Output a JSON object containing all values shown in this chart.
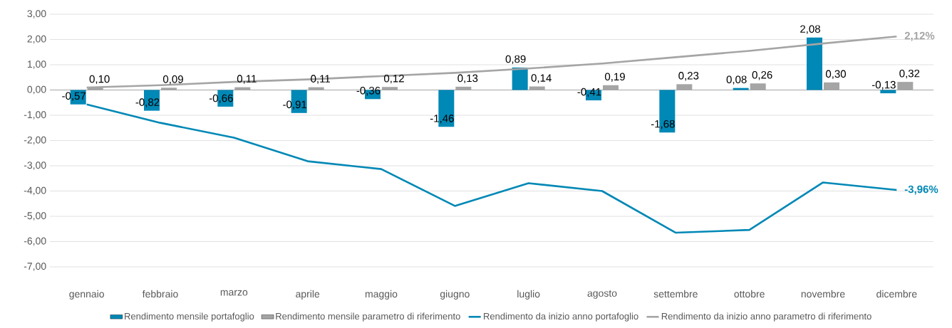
{
  "chart_data": {
    "type": "bar",
    "categories": [
      "gennaio",
      "febbraio",
      "marzo",
      "aprile",
      "maggio",
      "giugno",
      "luglio",
      "agosto",
      "settembre",
      "ottobre",
      "novembre",
      "dicembre"
    ],
    "series": [
      {
        "name": "Rendimento mensile portafoglio",
        "color": "#0088b6",
        "values": [
          -0.57,
          -0.82,
          -0.66,
          -0.91,
          -0.36,
          -1.46,
          0.89,
          -0.41,
          -1.68,
          0.08,
          2.08,
          -0.13
        ],
        "value_labels": [
          "-0,57",
          "-0,82",
          "-0,66",
          "-0,91",
          "-0,36",
          "-1,46",
          "0,89",
          "-0,41",
          "-1,68",
          "0,08",
          "2,08",
          "-0,13"
        ]
      },
      {
        "name": "Rendimento mensile parametro di riferimento",
        "color": "#a5a5a5",
        "values": [
          0.1,
          0.09,
          0.11,
          0.11,
          0.12,
          0.13,
          0.14,
          0.19,
          0.23,
          0.26,
          0.3,
          0.32
        ],
        "value_labels": [
          "0,10",
          "0,09",
          "0,11",
          "0,11",
          "0,12",
          "0,13",
          "0,14",
          "0,19",
          "0,23",
          "0,26",
          "0,30",
          "0,32"
        ]
      },
      {
        "name": "Rendimento da inizio anno portafoglio",
        "type": "line",
        "color": "#0088b6",
        "values": [
          -0.57,
          -1.3,
          -1.89,
          -2.82,
          -3.13,
          -4.59,
          -3.69,
          -4.0,
          -5.65,
          -5.54,
          -3.66,
          -3.96
        ]
      },
      {
        "name": "Rendimento da inizio anno parametro di riferimento",
        "type": "line",
        "color": "#a5a5a5",
        "values": [
          0.1,
          0.19,
          0.32,
          0.42,
          0.55,
          0.68,
          0.85,
          1.05,
          1.3,
          1.55,
          1.84,
          2.12
        ]
      }
    ],
    "ylim": [
      -7,
      3
    ],
    "yticks": [
      {
        "value": -7,
        "label": "-7,00"
      },
      {
        "value": -6,
        "label": "-6,00"
      },
      {
        "value": -5,
        "label": "-5,00"
      },
      {
        "value": -4,
        "label": "-4,00"
      },
      {
        "value": -3,
        "label": "-3,00"
      },
      {
        "value": -2,
        "label": "-2,00"
      },
      {
        "value": -1,
        "label": "-1,00"
      },
      {
        "value": 0,
        "label": "0,00"
      },
      {
        "value": 1,
        "label": "1,00"
      },
      {
        "value": 2,
        "label": "2,00"
      },
      {
        "value": 3,
        "label": "3,00"
      }
    ],
    "annotations": [
      {
        "text": "2,12%",
        "x": "dicembre",
        "y": 2.12
      },
      {
        "text": "-3,96%",
        "x": "dicembre",
        "y": -3.96
      }
    ],
    "grid": "y",
    "legend": "bottom",
    "marker": "none",
    "line_style": "solid"
  }
}
